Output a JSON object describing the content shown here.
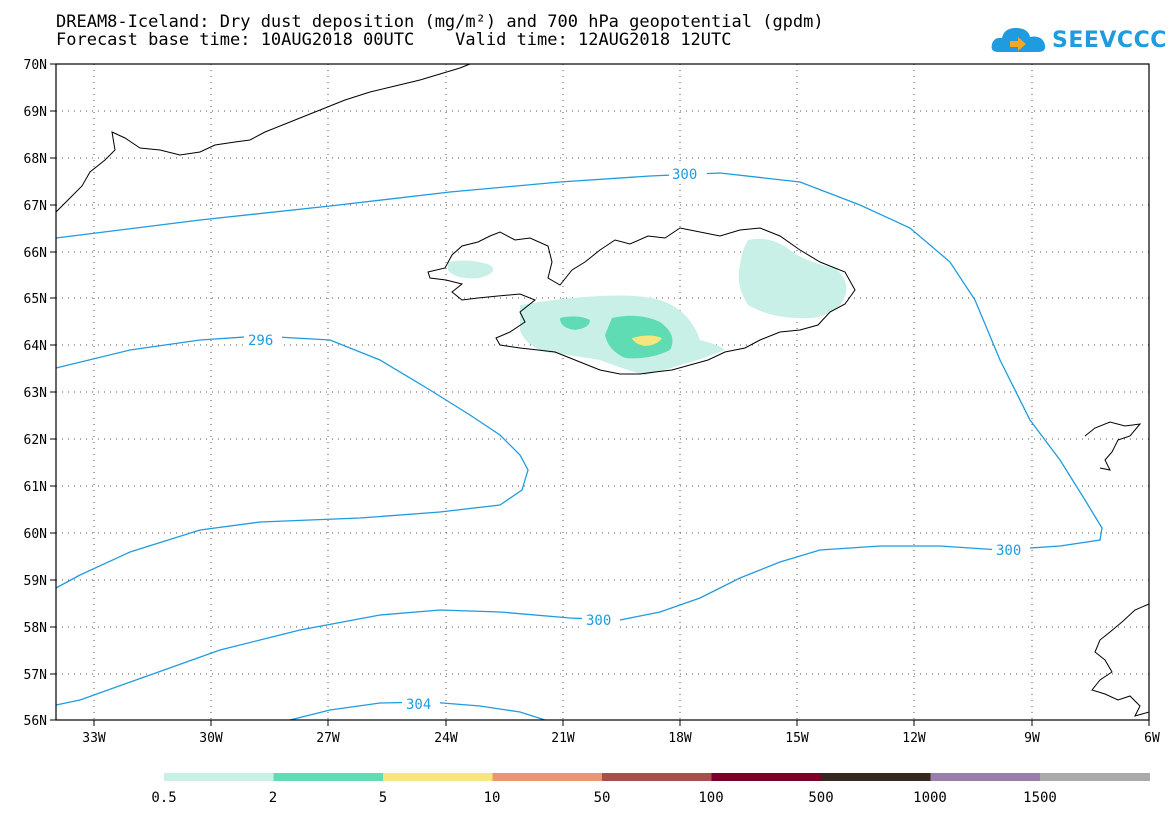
{
  "title": {
    "line1": "DREAM8-Iceland: Dry dust deposition (mg/m²) and 700 hPa geopotential (gpdm)",
    "line2": "Forecast base time: 10AUG2018 00UTC    Valid time: 12AUG2018 12UTC"
  },
  "logo": {
    "text": "SEEVCCC",
    "color": "#1f9be0",
    "icon": "cloud-icon"
  },
  "axes": {
    "lat_labels": [
      "70N",
      "69N",
      "68N",
      "67N",
      "66N",
      "65N",
      "64N",
      "63N",
      "62N",
      "61N",
      "60N",
      "59N",
      "58N",
      "57N",
      "56N"
    ],
    "lon_labels": [
      "33W",
      "30W",
      "27W",
      "24W",
      "21W",
      "18W",
      "15W",
      "12W",
      "9W",
      "6W"
    ]
  },
  "contours": {
    "color": "#1f9be0",
    "labels": [
      "300",
      "296",
      "300",
      "300",
      "304"
    ]
  },
  "colorbar": {
    "colors": [
      "#c8f0e6",
      "#5fdcb4",
      "#f5e67d",
      "#eb9673",
      "#a5504b",
      "#7d0028",
      "#37281e",
      "#9b7daa",
      "#aaaaaa"
    ],
    "labels": [
      "0.5",
      "2",
      "5",
      "10",
      "50",
      "100",
      "500",
      "1000",
      "1500"
    ]
  }
}
